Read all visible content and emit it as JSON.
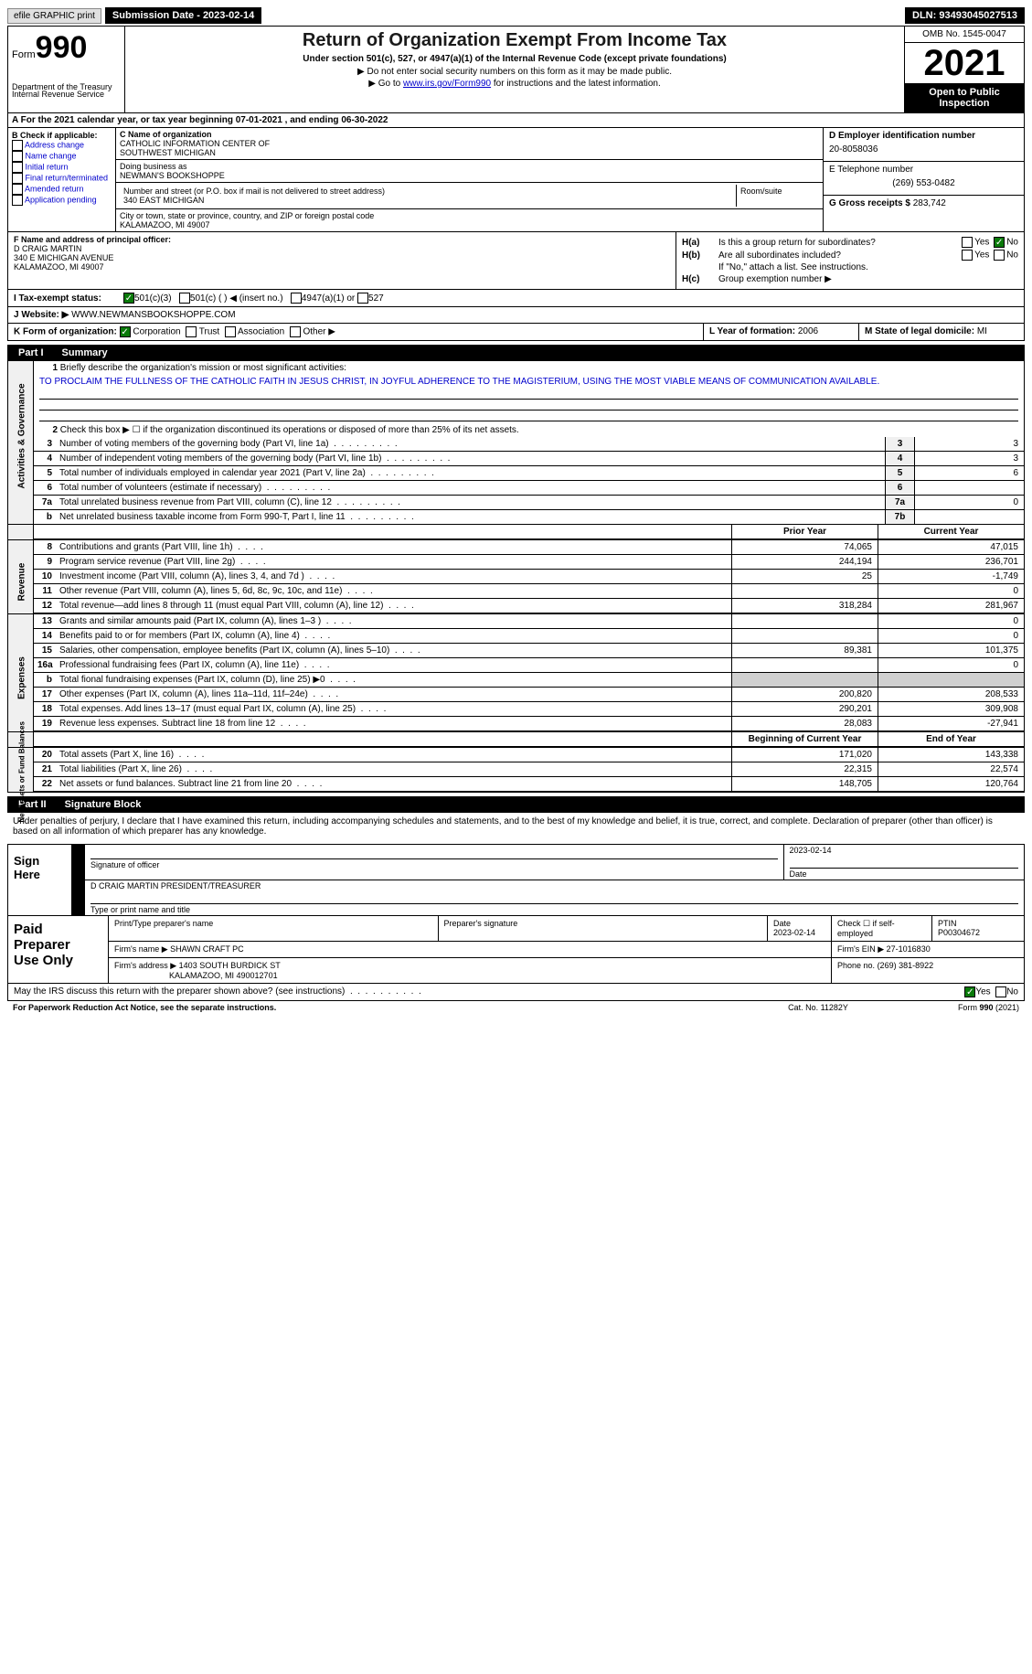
{
  "top": {
    "efile": "efile GRAPHIC print",
    "submission": "Submission Date - 2023-02-14",
    "dln": "DLN: 93493045027513"
  },
  "header": {
    "form_word": "Form",
    "form_num": "990",
    "title": "Return of Organization Exempt From Income Tax",
    "subtitle": "Under section 501(c), 527, or 4947(a)(1) of the Internal Revenue Code (except private foundations)",
    "instr1": "▶ Do not enter social security numbers on this form as it may be made public.",
    "instr2_pre": "▶ Go to ",
    "instr2_link": "www.irs.gov/Form990",
    "instr2_post": " for instructions and the latest information.",
    "dept": "Department of the Treasury",
    "irs": "Internal Revenue Service",
    "omb": "OMB No. 1545-0047",
    "year": "2021",
    "inspection1": "Open to Public",
    "inspection2": "Inspection"
  },
  "rowA": "A For the 2021 calendar year, or tax year beginning 07-01-2021   , and ending 06-30-2022",
  "sectionB": {
    "title": "B Check if applicable:",
    "items": [
      "Address change",
      "Name change",
      "Initial return",
      "Final return/terminated",
      "Amended return",
      "Application pending"
    ]
  },
  "sectionC": {
    "name_lbl": "C Name of organization",
    "name1": "CATHOLIC INFORMATION CENTER OF",
    "name2": "SOUTHWEST MICHIGAN",
    "dba_lbl": "Doing business as",
    "dba": "NEWMAN'S BOOKSHOPPE",
    "addr_lbl": "Number and street (or P.O. box if mail is not delivered to street address)",
    "addr": "340 EAST MICHIGAN",
    "room_lbl": "Room/suite",
    "city_lbl": "City or town, state or province, country, and ZIP or foreign postal code",
    "city": "KALAMAZOO, MI  49007"
  },
  "sectionD": {
    "ein_lbl": "D Employer identification number",
    "ein": "20-8058036",
    "phone_lbl": "E Telephone number",
    "phone": "(269) 553-0482",
    "gross_lbl": "G Gross receipts $",
    "gross": "283,742"
  },
  "sectionF": {
    "lbl": "F Name and address of principal officer:",
    "name": "D CRAIG MARTIN",
    "addr": "340 E MICHIGAN AVENUE",
    "city": "KALAMAZOO, MI  49007"
  },
  "sectionH": {
    "a_lbl": "H(a)",
    "a_text": "Is this a group return for subordinates?",
    "b_lbl": "H(b)",
    "b_text": "Are all subordinates included?",
    "note": "If \"No,\" attach a list. See instructions.",
    "c_lbl": "H(c)",
    "c_text": "Group exemption number ▶",
    "yes": "Yes",
    "no": "No"
  },
  "rowI": {
    "lbl": "I    Tax-exempt status:",
    "opt1": "501(c)(3)",
    "opt2": "501(c) (  ) ◀ (insert no.)",
    "opt3": "4947(a)(1) or",
    "opt4": "527"
  },
  "rowJ": {
    "lbl": "J   Website: ▶",
    "val": " WWW.NEWMANSBOOKSHOPPE.COM"
  },
  "rowK": {
    "k_lbl": "K Form of organization:",
    "corp": "Corporation",
    "trust": "Trust",
    "assoc": "Association",
    "other": "Other ▶",
    "l_lbl": "L Year of formation:",
    "l_val": "2006",
    "m_lbl": "M State of legal domicile:",
    "m_val": "MI"
  },
  "part1": {
    "num": "Part I",
    "title": "Summary",
    "sections": [
      {
        "vlabel": "Activities & Governance",
        "type": "gov",
        "intro_num": "1",
        "intro": "Briefly describe the organization's mission or most significant activities:",
        "mission": "TO PROCLAIM THE FULLNESS OF THE CATHOLIC FAITH IN JESUS CHRIST, IN JOYFUL ADHERENCE TO THE MAGISTERIUM, USING THE MOST VIABLE MEANS OF COMMUNICATION AVAILABLE.",
        "line2": "Check this box ▶ ☐  if the organization discontinued its operations or disposed of more than 25% of its net assets.",
        "lines": [
          {
            "n": "3",
            "t": "Number of voting members of the governing body (Part VI, line 1a)",
            "box": "3",
            "v": "3"
          },
          {
            "n": "4",
            "t": "Number of independent voting members of the governing body (Part VI, line 1b)",
            "box": "4",
            "v": "3"
          },
          {
            "n": "5",
            "t": "Total number of individuals employed in calendar year 2021 (Part V, line 2a)",
            "box": "5",
            "v": "6"
          },
          {
            "n": "6",
            "t": "Total number of volunteers (estimate if necessary)",
            "box": "6",
            "v": ""
          },
          {
            "n": "7a",
            "t": "Total unrelated business revenue from Part VIII, column (C), line 12",
            "box": "7a",
            "v": "0"
          },
          {
            "n": "b",
            "t": "Net unrelated business taxable income from Form 990-T, Part I, line 11",
            "box": "7b",
            "v": ""
          }
        ]
      }
    ],
    "col_prior": "Prior Year",
    "col_current": "Current Year",
    "revenue": {
      "vlabel": "Revenue",
      "lines": [
        {
          "n": "8",
          "t": "Contributions and grants (Part VIII, line 1h)",
          "p": "74,065",
          "c": "47,015"
        },
        {
          "n": "9",
          "t": "Program service revenue (Part VIII, line 2g)",
          "p": "244,194",
          "c": "236,701"
        },
        {
          "n": "10",
          "t": "Investment income (Part VIII, column (A), lines 3, 4, and 7d )",
          "p": "25",
          "c": "-1,749"
        },
        {
          "n": "11",
          "t": "Other revenue (Part VIII, column (A), lines 5, 6d, 8c, 9c, 10c, and 11e)",
          "p": "",
          "c": "0"
        },
        {
          "n": "12",
          "t": "Total revenue—add lines 8 through 11 (must equal Part VIII, column (A), line 12)",
          "p": "318,284",
          "c": "281,967"
        }
      ]
    },
    "expenses": {
      "vlabel": "Expenses",
      "lines": [
        {
          "n": "13",
          "t": "Grants and similar amounts paid (Part IX, column (A), lines 1–3 )",
          "p": "",
          "c": "0"
        },
        {
          "n": "14",
          "t": "Benefits paid to or for members (Part IX, column (A), line 4)",
          "p": "",
          "c": "0"
        },
        {
          "n": "15",
          "t": "Salaries, other compensation, employee benefits (Part IX, column (A), lines 5–10)",
          "p": "89,381",
          "c": "101,375"
        },
        {
          "n": "16a",
          "t": "Professional fundraising fees (Part IX, column (A), line 11e)",
          "p": "",
          "c": "0"
        },
        {
          "n": "b",
          "t": "Total fional fundraising expenses (Part IX, column (D), line 25) ▶0",
          "p": "shade",
          "c": "shade"
        },
        {
          "n": "17",
          "t": "Other expenses (Part IX, column (A), lines 11a–11d, 11f–24e)",
          "p": "200,820",
          "c": "208,533"
        },
        {
          "n": "18",
          "t": "Total expenses. Add lines 13–17 (must equal Part IX, column (A), line 25)",
          "p": "290,201",
          "c": "309,908"
        },
        {
          "n": "19",
          "t": "Revenue less expenses. Subtract line 18 from line 12",
          "p": "28,083",
          "c": "-27,941"
        }
      ]
    },
    "net": {
      "vlabel": "Net Assets or Fund Balances",
      "col_begin": "Beginning of Current Year",
      "col_end": "End of Year",
      "lines": [
        {
          "n": "20",
          "t": "Total assets (Part X, line 16)",
          "p": "171,020",
          "c": "143,338"
        },
        {
          "n": "21",
          "t": "Total liabilities (Part X, line 26)",
          "p": "22,315",
          "c": "22,574"
        },
        {
          "n": "22",
          "t": "Net assets or fund balances. Subtract line 21 from line 20",
          "p": "148,705",
          "c": "120,764"
        }
      ]
    }
  },
  "part2": {
    "num": "Part II",
    "title": "Signature Block",
    "penalty": "Under penalties of perjury, I declare that I have examined this return, including accompanying schedules and statements, and to the best of my knowledge and belief, it is true, correct, and complete. Declaration of preparer (other than officer) is based on all information of which preparer has any knowledge."
  },
  "sign": {
    "lbl": "Sign Here",
    "sig_lbl": "Signature of officer",
    "date": "2023-02-14",
    "date_lbl": "Date",
    "name": "D CRAIG MARTIN  PRESIDENT/TREASURER",
    "name_lbl": "Type or print name and title"
  },
  "preparer": {
    "lbl1": "Paid",
    "lbl2": "Preparer",
    "lbl3": "Use Only",
    "print_lbl": "Print/Type preparer's name",
    "sig_lbl": "Preparer's signature",
    "date_lbl": "Date",
    "date": "2023-02-14",
    "check_lbl": "Check ☐ if self-employed",
    "ptin_lbl": "PTIN",
    "ptin": "P00304672",
    "firm_name_lbl": "Firm's name    ▶",
    "firm_name": "SHAWN CRAFT PC",
    "firm_ein_lbl": "Firm's EIN ▶",
    "firm_ein": "27-1016830",
    "firm_addr_lbl": "Firm's address ▶",
    "firm_addr1": "1403 SOUTH BURDICK ST",
    "firm_addr2": "KALAMAZOO, MI  490012701",
    "phone_lbl": "Phone no.",
    "phone": "(269) 381-8922"
  },
  "footer": {
    "discuss": "May the IRS discuss this return with the preparer shown above? (see instructions)",
    "yes": "Yes",
    "no": "No",
    "paperwork": "For Paperwork Reduction Act Notice, see the separate instructions.",
    "cat": "Cat. No. 11282Y",
    "form": "Form 990 (2021)"
  }
}
